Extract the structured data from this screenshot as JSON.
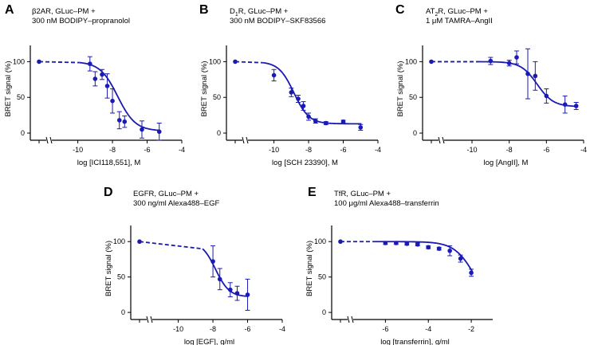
{
  "figure": {
    "curve_color": "#1a1ab4",
    "axis_color": "#000000"
  },
  "chart_data": [
    {
      "letter": "A",
      "type": "line",
      "title": [
        "β2AR, GLuc–PM +",
        "300 nM BODIPY–propranolol"
      ],
      "xlabel": "log [ICI118,551], M",
      "ylabel": "BRET signal  (%)",
      "xlim": [
        -11.5,
        -4
      ],
      "ylim": [
        -10,
        125
      ],
      "xticks": [
        -10,
        -8,
        -6,
        -4
      ],
      "xtick_labels": [
        "-10",
        "-8",
        "-6",
        "-4"
      ],
      "yticks": [
        0,
        50,
        100
      ],
      "ytick_labels": [
        "0",
        "50",
        "100"
      ],
      "ctrl": {
        "y": 100
      },
      "x": [
        -9.3,
        -9.0,
        -8.6,
        -8.3,
        -8.0,
        -7.6,
        -7.3,
        -6.3,
        -5.3
      ],
      "y": [
        97,
        76,
        82,
        66,
        45,
        18,
        16,
        5,
        2
      ],
      "err": [
        10,
        10,
        7,
        17,
        17,
        12,
        8,
        12,
        12
      ],
      "fit": {
        "top": 100,
        "bottom": 3,
        "logec50": -7.7,
        "hill": 0.85
      }
    },
    {
      "letter": "B",
      "type": "line",
      "title": [
        "D1R, GLuc–PM +",
        "300 nM BODIPY–SKF83566"
      ],
      "xlabel": "log [SCH 23390], M",
      "ylabel": "BRET signal  (%)",
      "xlim": [
        -11.5,
        -4
      ],
      "ylim": [
        -10,
        125
      ],
      "xticks": [
        -10,
        -8,
        -6,
        -4
      ],
      "xtick_labels": [
        "-10",
        "-8",
        "-6",
        "-4"
      ],
      "yticks": [
        0,
        50,
        100
      ],
      "ytick_labels": [
        "0",
        "50",
        "100"
      ],
      "ctrl": {
        "y": 100
      },
      "x": [
        -10.0,
        -9.0,
        -8.6,
        -8.3,
        -8.0,
        -7.6,
        -7.0,
        -6.0,
        -5.0
      ],
      "y": [
        81,
        57,
        48,
        38,
        23,
        17,
        14,
        16,
        8
      ],
      "err": [
        8,
        6,
        5,
        6,
        5,
        3,
        2,
        2,
        4
      ],
      "fit": {
        "top": 100,
        "bottom": 13,
        "logec50": -8.85,
        "hill": 1.0
      }
    },
    {
      "letter": "C",
      "type": "line",
      "title": [
        "AT2R, GLuc–PM +",
        "1 μM TAMRA–AngII"
      ],
      "xlabel": "log [AngII], M",
      "ylabel": "BRET signal  (%)",
      "xlim": [
        -11.5,
        -4
      ],
      "ylim": [
        -10,
        125
      ],
      "xticks": [
        -10,
        -8,
        -6,
        -4
      ],
      "xtick_labels": [
        "-10",
        "-8",
        "-6",
        "-4"
      ],
      "yticks": [
        0,
        50,
        100
      ],
      "ytick_labels": [
        "0",
        "50",
        "100"
      ],
      "ctrl": {
        "y": 100
      },
      "x": [
        -9.0,
        -8.0,
        -7.6,
        -7.0,
        -6.6,
        -6.0,
        -5.0,
        -4.4
      ],
      "y": [
        101,
        98,
        106,
        83,
        80,
        52,
        40,
        38
      ],
      "err": [
        5,
        4,
        9,
        35,
        20,
        10,
        12,
        5
      ],
      "fit": {
        "top": 100,
        "bottom": 37,
        "logec50": -6.5,
        "hill": 1.0
      }
    },
    {
      "letter": "D",
      "type": "line",
      "title": [
        "EGFR, GLuc–PM +",
        "300 ng/ml Alexa488–EGF"
      ],
      "xlabel": "log [EGF], g/ml",
      "ylabel": "BRET signal  (%)",
      "xlim": [
        -11.5,
        -4
      ],
      "ylim": [
        -10,
        125
      ],
      "xticks": [
        -10,
        -8,
        -6,
        -4
      ],
      "xtick_labels": [
        "-10",
        "-8",
        "-6",
        "-4"
      ],
      "yticks": [
        0,
        50,
        100
      ],
      "ytick_labels": [
        "0",
        "50",
        "100"
      ],
      "ctrl": {
        "y": 100
      },
      "x": [
        -8.0,
        -7.6,
        -7.0,
        -6.6,
        -6.0
      ],
      "y": [
        72,
        47,
        32,
        27,
        25
      ],
      "err": [
        22,
        15,
        10,
        10,
        22
      ],
      "fit": {
        "top": 100,
        "bottom": 22,
        "logec50": -7.85,
        "hill": 1.1
      }
    },
    {
      "letter": "E",
      "type": "line",
      "title": [
        "TfR, GLuc–PM +",
        "100 μg/ml Alexa488–transferrin"
      ],
      "xlabel": "log [transferrin], g/ml",
      "ylabel": "BRET signal  (%)",
      "xlim": [
        -7.5,
        -1
      ],
      "ylim": [
        -10,
        125
      ],
      "xticks": [
        -6,
        -4,
        -2
      ],
      "xtick_labels": [
        "-6",
        "-4",
        "-2"
      ],
      "yticks": [
        0,
        50,
        100
      ],
      "ytick_labels": [
        "0",
        "50",
        "100"
      ],
      "ctrl": {
        "y": 100
      },
      "x": [
        -6.0,
        -5.5,
        -5.0,
        -4.5,
        -4.0,
        -3.5,
        -3.0,
        -2.5,
        -2.0
      ],
      "y": [
        98,
        98,
        97,
        96,
        92,
        90,
        87,
        76,
        56
      ],
      "err": [
        2,
        2,
        2,
        2,
        2,
        2,
        7,
        5,
        5
      ],
      "fit": {
        "top": 100,
        "bottom": 0,
        "logec50": -1.8,
        "hill": 0.9
      }
    }
  ]
}
